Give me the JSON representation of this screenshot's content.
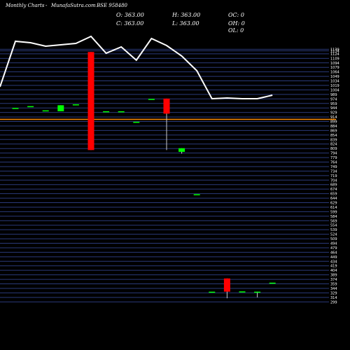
{
  "header": {
    "brand": "Monthly Charts",
    "separator": "-",
    "site": "MunafaSutra.com",
    "symbol": "BSE 958480",
    "open": "O: 363.00",
    "high": "H: 363.00",
    "change": "OC: 0",
    "close": "C: 363.00",
    "low": "L: 363.00",
    "hi_change": "OH: 0",
    "lo_change": "OL: 0"
  },
  "colors": {
    "background": "#000000",
    "grid": "#2a3a7a",
    "up": "#00ff00",
    "down": "#ff0000",
    "neutral": "#00ff00",
    "line": "#ffffff",
    "reference": "#ff8c00",
    "text": "#ffffff"
  },
  "chart_data": {
    "type": "candlestick",
    "price_axis": {
      "side": "right",
      "ylim": [
        295,
        1140
      ],
      "ticks": [
        1139,
        1134,
        1124,
        1109,
        1094,
        1079,
        1064,
        1049,
        1034,
        1019,
        1004,
        989,
        974,
        959,
        944,
        929,
        914,
        899,
        884,
        869,
        854,
        839,
        824,
        809,
        794,
        779,
        764,
        749,
        734,
        719,
        704,
        689,
        674,
        659,
        644,
        629,
        614,
        599,
        584,
        569,
        554,
        539,
        524,
        509,
        494,
        479,
        464,
        449,
        434,
        419,
        404,
        389,
        374,
        359,
        344,
        329,
        314,
        299
      ]
    },
    "reference_line": 906,
    "candles": [
      {
        "open": 944,
        "high": 944,
        "low": 944,
        "close": 944
      },
      {
        "open": 950,
        "high": 950,
        "low": 950,
        "close": 950
      },
      {
        "open": 936,
        "high": 936,
        "low": 936,
        "close": 936
      },
      {
        "open": 933,
        "high": 953,
        "low": 933,
        "close": 953
      },
      {
        "open": 954,
        "high": 956,
        "low": 954,
        "close": 956
      },
      {
        "open": 1130,
        "high": 1130,
        "low": 804,
        "close": 804
      },
      {
        "open": 933,
        "high": 933,
        "low": 933,
        "close": 933
      },
      {
        "open": 933,
        "high": 933,
        "low": 933,
        "close": 933
      },
      {
        "open": 898,
        "high": 898,
        "low": 898,
        "close": 898
      },
      {
        "open": 974,
        "high": 974,
        "low": 974,
        "close": 974
      },
      {
        "open": 975,
        "high": 975,
        "low": 804,
        "close": 925
      },
      {
        "open": 798,
        "high": 810,
        "low": 792,
        "close": 810
      },
      {
        "open": 657,
        "high": 657,
        "low": 657,
        "close": 657
      },
      {
        "open": 333,
        "high": 333,
        "low": 333,
        "close": 333
      },
      {
        "open": 377,
        "high": 377,
        "low": 311,
        "close": 333
      },
      {
        "open": 334,
        "high": 334,
        "low": 334,
        "close": 334
      },
      {
        "open": 333,
        "high": 333,
        "low": 314,
        "close": 333
      },
      {
        "open": 363,
        "high": 363,
        "low": 363,
        "close": 363
      }
    ],
    "overlay_line": [
      59,
      61,
      66,
      64,
      62,
      52,
      76,
      67,
      86,
      55,
      65,
      80,
      101,
      141,
      140,
      141,
      141,
      136
    ]
  }
}
